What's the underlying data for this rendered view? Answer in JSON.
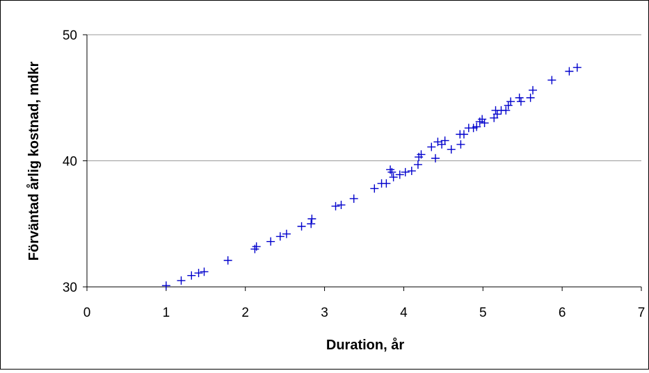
{
  "chart_data": {
    "type": "scatter",
    "xlabel": "Duration, år",
    "ylabel": "Förväntad årlig kostnad, mdkr",
    "xlim": [
      0,
      7
    ],
    "ylim": [
      30,
      50
    ],
    "x_ticks": [
      "0",
      "1",
      "2",
      "3",
      "4",
      "5",
      "6",
      "7"
    ],
    "y_ticks": [
      "30",
      "40",
      "50"
    ],
    "x_tick_values": [
      0,
      1,
      2,
      3,
      4,
      5,
      6,
      7
    ],
    "y_tick_values": [
      30,
      40,
      50
    ],
    "grid": "horizontal major gridlines",
    "legend": "none",
    "marker": "plus",
    "marker_color": "#0000cc",
    "series": [
      {
        "points": [
          [
            1.0,
            30.1
          ],
          [
            1.19,
            30.5
          ],
          [
            1.32,
            30.9
          ],
          [
            1.41,
            31.1
          ],
          [
            1.48,
            31.2
          ],
          [
            1.78,
            32.1
          ],
          [
            2.12,
            33.0
          ],
          [
            2.14,
            33.2
          ],
          [
            2.32,
            33.6
          ],
          [
            2.44,
            34.0
          ],
          [
            2.52,
            34.2
          ],
          [
            2.71,
            34.8
          ],
          [
            2.83,
            35.0
          ],
          [
            2.84,
            35.4
          ],
          [
            3.14,
            36.4
          ],
          [
            3.21,
            36.5
          ],
          [
            3.37,
            37.0
          ],
          [
            3.63,
            37.8
          ],
          [
            3.72,
            38.2
          ],
          [
            3.78,
            38.2
          ],
          [
            3.83,
            39.3
          ],
          [
            3.85,
            39.1
          ],
          [
            3.87,
            38.7
          ],
          [
            3.95,
            38.9
          ],
          [
            4.02,
            39.1
          ],
          [
            4.1,
            39.2
          ],
          [
            4.18,
            39.7
          ],
          [
            4.19,
            40.3
          ],
          [
            4.22,
            40.5
          ],
          [
            4.35,
            41.1
          ],
          [
            4.4,
            40.2
          ],
          [
            4.43,
            41.5
          ],
          [
            4.48,
            41.3
          ],
          [
            4.52,
            41.6
          ],
          [
            4.6,
            40.9
          ],
          [
            4.71,
            42.1
          ],
          [
            4.72,
            41.3
          ],
          [
            4.76,
            42.1
          ],
          [
            4.82,
            42.6
          ],
          [
            4.88,
            42.6
          ],
          [
            4.92,
            42.7
          ],
          [
            4.96,
            43.1
          ],
          [
            4.99,
            43.3
          ],
          [
            5.02,
            43.0
          ],
          [
            5.14,
            43.4
          ],
          [
            5.16,
            44.0
          ],
          [
            5.18,
            43.7
          ],
          [
            5.23,
            44.0
          ],
          [
            5.29,
            44.0
          ],
          [
            5.32,
            44.4
          ],
          [
            5.35,
            44.7
          ],
          [
            5.46,
            45.0
          ],
          [
            5.48,
            44.7
          ],
          [
            5.6,
            45.0
          ],
          [
            5.63,
            45.6
          ],
          [
            5.87,
            46.4
          ],
          [
            6.09,
            47.1
          ],
          [
            6.19,
            47.4
          ]
        ]
      }
    ]
  }
}
